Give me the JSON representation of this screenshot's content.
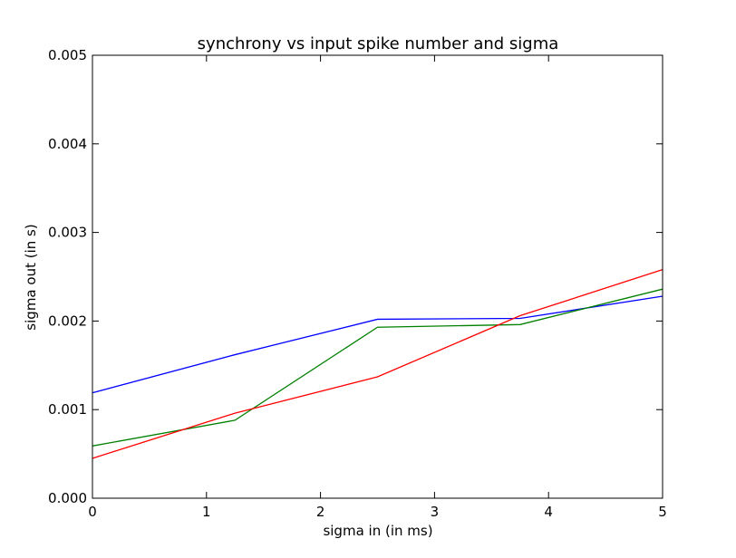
{
  "chart_data": {
    "type": "line",
    "title": "synchrony vs input spike number and sigma",
    "xlabel": "sigma in (in ms)",
    "ylabel": "sigma out (in s)",
    "xlim": [
      0,
      5
    ],
    "ylim": [
      0,
      0.005
    ],
    "x_ticks": [
      0,
      1,
      2,
      3,
      4,
      5
    ],
    "x_tick_labels": [
      "0",
      "1",
      "2",
      "3",
      "4",
      "5"
    ],
    "y_ticks": [
      0,
      0.001,
      0.002,
      0.003,
      0.004,
      0.005
    ],
    "y_tick_labels": [
      "0.000",
      "0.001",
      "0.002",
      "0.003",
      "0.004",
      "0.005"
    ],
    "grid": false,
    "legend": null,
    "series": [
      {
        "color": "#0000ff",
        "x": [
          0,
          1.25,
          2.5,
          3.75,
          5
        ],
        "y": [
          0.00119,
          0.00162,
          0.00202,
          0.00203,
          0.00228
        ]
      },
      {
        "color": "#008000",
        "x": [
          0,
          1.25,
          2.5,
          3.75,
          5
        ],
        "y": [
          0.00059,
          0.00088,
          0.00193,
          0.00196,
          0.00236
        ]
      },
      {
        "color": "#ff0000",
        "x": [
          0,
          1.25,
          2.5,
          3.75,
          5
        ],
        "y": [
          0.00045,
          0.00096,
          0.00137,
          0.00206,
          0.00258
        ]
      }
    ]
  }
}
